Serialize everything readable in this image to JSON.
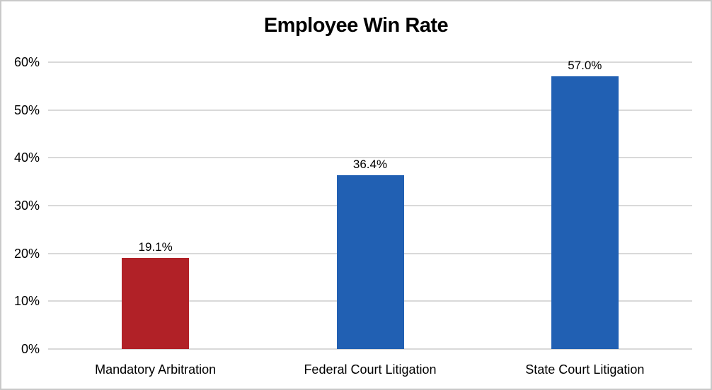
{
  "chart_data": {
    "type": "bar",
    "title": "Employee Win Rate",
    "categories": [
      "Mandatory Arbitration",
      "Federal Court Litigation",
      "State Court Litigation"
    ],
    "values": [
      19.1,
      36.4,
      57.0
    ],
    "data_labels": [
      "19.1%",
      "36.4%",
      "57.0%"
    ],
    "bar_colors": [
      "#b12127",
      "#2160b3",
      "#2160b3"
    ],
    "xlabel": "",
    "ylabel": "",
    "ylim": [
      0,
      60
    ],
    "ytick_step": 10,
    "ytick_labels": [
      "0%",
      "10%",
      "20%",
      "30%",
      "40%",
      "50%",
      "60%"
    ],
    "grid": true,
    "gridline_color": "#d9d9d9",
    "legend": "none",
    "frame_border_color": "#c9c9c9",
    "background_color": "#ffffff"
  }
}
